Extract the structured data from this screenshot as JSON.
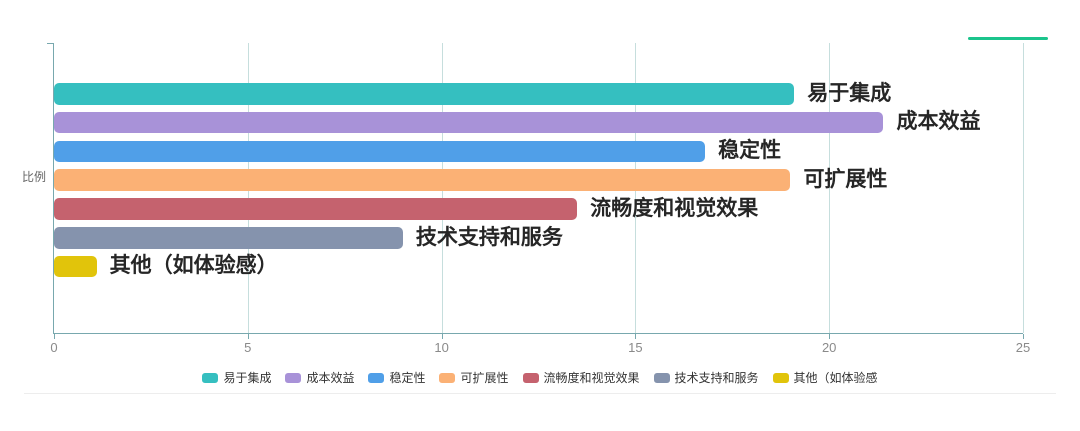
{
  "accent_color": "#1bc48c",
  "chart_data": {
    "type": "bar",
    "orientation": "horizontal",
    "title": "",
    "xlabel": "",
    "ylabel": "比例",
    "xlim": [
      0,
      25
    ],
    "x_ticks": [
      0,
      5,
      10,
      15,
      20,
      25
    ],
    "grid": true,
    "categories": [
      "易于集成",
      "成本效益",
      "稳定性",
      "可扩展性",
      "流畅度和视觉效果",
      "技术支持和服务",
      "其他（如体验感）"
    ],
    "values": [
      19.1,
      21.4,
      16.8,
      19,
      13.5,
      9,
      1.1
    ],
    "bar_colors": [
      "#35bfc0",
      "#a892d8",
      "#509fe8",
      "#fbb175",
      "#c5626e",
      "#8593ad",
      "#e1c40b"
    ],
    "legend": {
      "position": "bottom",
      "items": [
        "易于集成",
        "成本效益",
        "稳定性",
        "可扩展性",
        "流畅度和视觉效果",
        "技术支持和服务",
        "其他（如体验感"
      ]
    }
  }
}
